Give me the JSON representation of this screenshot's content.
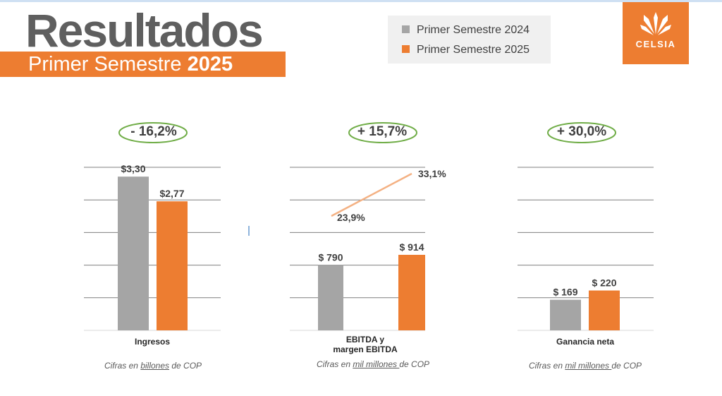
{
  "header": {
    "title": "Resultados",
    "subtitle_prefix": "Primer Semestre",
    "subtitle_year": "2025"
  },
  "legend": {
    "items": [
      {
        "label": "Primer Semestre 2024",
        "color": "#a5a5a5"
      },
      {
        "label": "Primer Semestre 2025",
        "color": "#ed7d31"
      }
    ]
  },
  "logo": {
    "text": "CELSIA",
    "icon": "celsia-flame-logo"
  },
  "colors": {
    "prior": "#a5a5a5",
    "current": "#ed7d31",
    "change_ellipse": "#70ad47",
    "margin_line": "#f4b183"
  },
  "chart_data": [
    {
      "type": "bar",
      "categories": [
        "Primer Semestre 2024",
        "Primer Semestre 2025"
      ],
      "values": [
        3.3,
        2.77
      ],
      "value_labels": [
        "$3,30",
        "$2,77"
      ],
      "xlabel": "Ingresos",
      "change": "- 16,2%",
      "note": {
        "pre": "Cifras en ",
        "unit": "billones",
        "post": " de COP"
      },
      "ylim": [
        0,
        3.5
      ],
      "gridlines": 6
    },
    {
      "type": "bar",
      "categories": [
        "Primer Semestre 2024",
        "Primer Semestre 2025"
      ],
      "values": [
        790,
        914
      ],
      "value_labels": [
        "$ 790",
        "$ 914"
      ],
      "line_series": {
        "values": [
          23.9,
          33.1
        ],
        "value_labels": [
          "23,9%",
          "33,1%"
        ]
      },
      "xlabel_lines": [
        "EBITDA y",
        "margen EBITDA"
      ],
      "change": "+ 15,7%",
      "note": {
        "pre": "Cifras en ",
        "unit": "mil millones ",
        "post": "de COP"
      },
      "gridlines": 6
    },
    {
      "type": "bar",
      "categories": [
        "Primer Semestre 2024",
        "Primer Semestre 2025"
      ],
      "values": [
        169,
        220
      ],
      "value_labels": [
        "$ 169",
        "$ 220"
      ],
      "xlabel": "Ganancia neta",
      "change": "+ 30,0%",
      "note": {
        "pre": "Cifras en ",
        "unit": "mil millones ",
        "post": "de COP"
      },
      "ylim": [
        0,
        900
      ],
      "gridlines": 6
    }
  ]
}
